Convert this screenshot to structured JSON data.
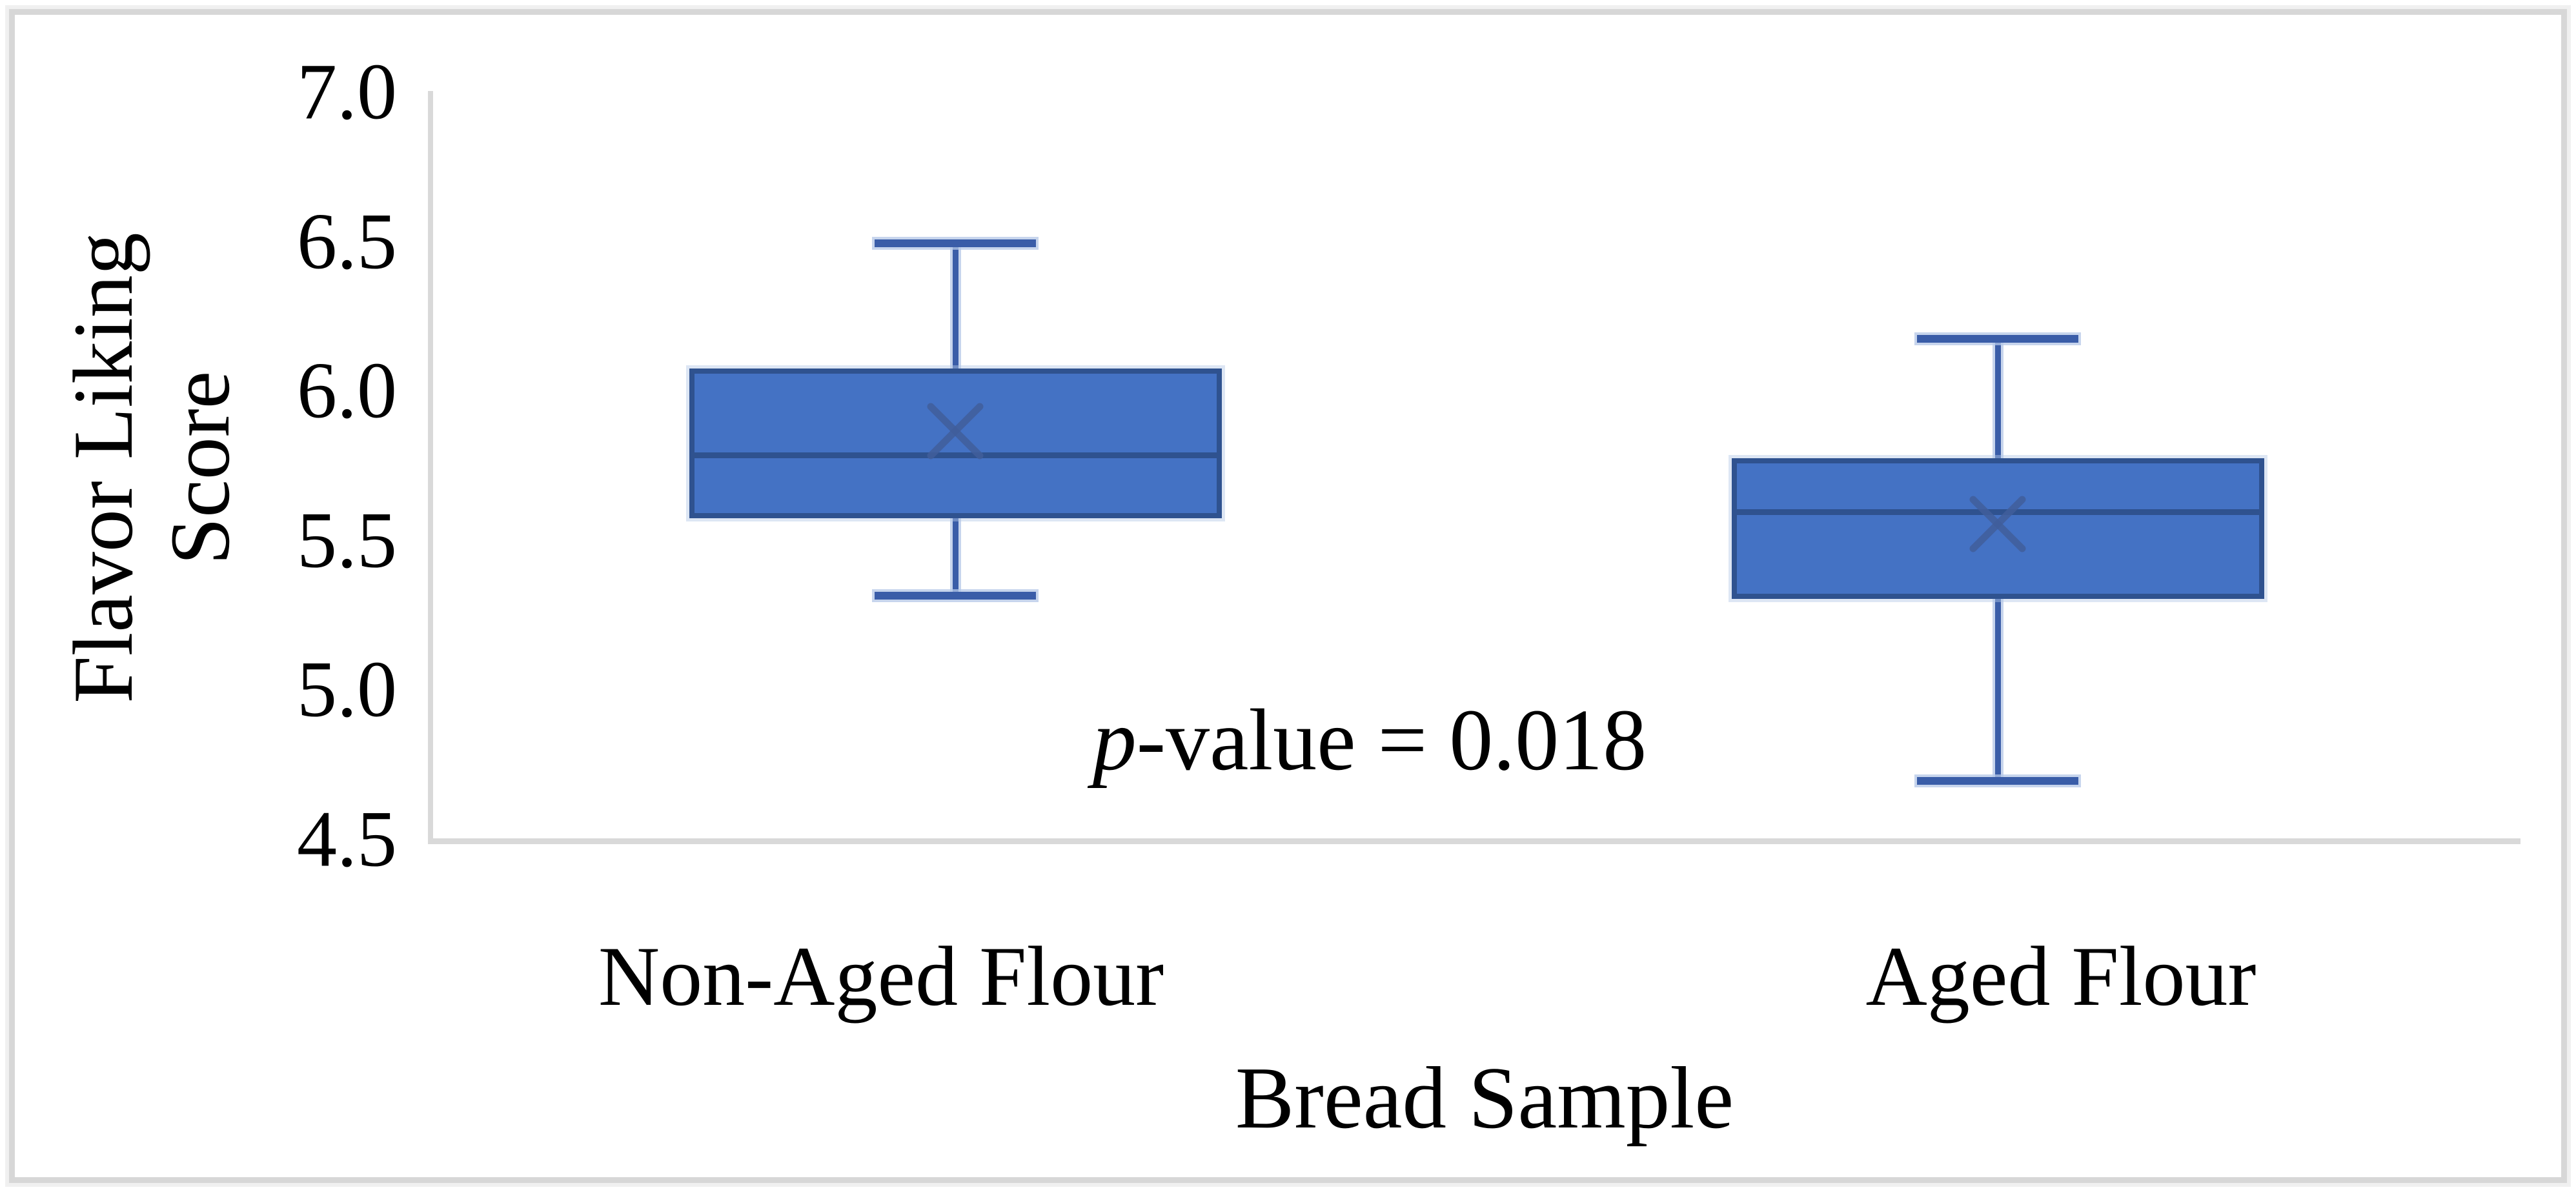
{
  "figure": {
    "background": "#FFFFFF",
    "border_color": "#D7D7D7"
  },
  "chart_data": {
    "type": "boxplot",
    "title": "",
    "xlabel": "Bread Sample",
    "ylabel": "Flavor Liking Score",
    "ylabel_lines": [
      "Flavor Liking",
      "Score"
    ],
    "y_axis": {
      "min": 4.5,
      "max": 7.0,
      "step": 0.5,
      "tick_labels": [
        "7.0",
        "6.5",
        "6.0",
        "5.5",
        "5.0",
        "4.5"
      ],
      "grid": false
    },
    "categories": [
      "Non-Aged Flour",
      "Aged Flour"
    ],
    "series": [
      {
        "name": "Non-Aged Flour",
        "whisker_low": 5.32,
        "q1": 5.58,
        "median": 5.79,
        "mean": 5.87,
        "q3": 6.08,
        "whisker_high": 6.5
      },
      {
        "name": "Aged Flour",
        "whisker_low": 4.7,
        "q1": 5.31,
        "median": 5.6,
        "mean": 5.56,
        "q3": 5.78,
        "whisker_high": 6.18
      }
    ],
    "annotation": {
      "italic_prefix": "p",
      "text": "-value = 0.018",
      "full_text": "p-value = 0.018"
    },
    "legend": null
  },
  "colors": {
    "box_fill": "#4472C4",
    "box_border": "#2F528F",
    "whisker": "#3A5DA8",
    "median_line": "#2F528F",
    "mean_marker": "#415E9B",
    "halo": "#B4C7E7",
    "axis_line": "#D9D9D9",
    "text": "#000000"
  }
}
